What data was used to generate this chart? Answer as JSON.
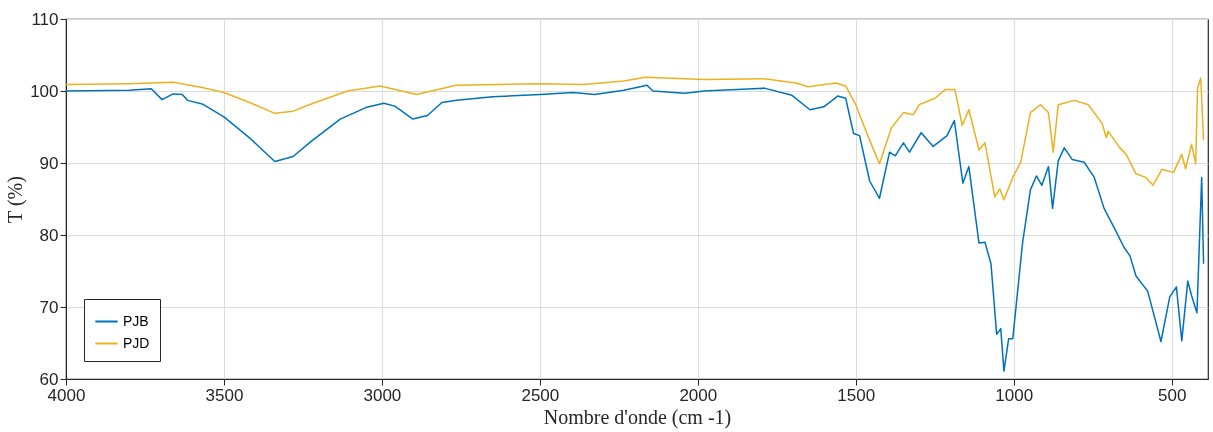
{
  "chart_data": {
    "type": "line",
    "xlabel": "Nombre d'onde (cm -1)",
    "ylabel": "T (%)",
    "xlim": [
      4000,
      385
    ],
    "xticks": [
      4000,
      3500,
      3000,
      2500,
      2000,
      1500,
      1000,
      500
    ],
    "ylim": [
      60,
      110
    ],
    "yticks": [
      60,
      70,
      80,
      90,
      100,
      110
    ],
    "grid": true,
    "legend": "bottom left",
    "line_style": "solid",
    "marker": "none",
    "series": [
      {
        "name": "PJB",
        "color": "#0072bd",
        "x": [
          4000,
          3799,
          3730,
          3696,
          3661,
          3632,
          3615,
          3569,
          3500,
          3419,
          3339,
          3281,
          3224,
          3132,
          3051,
          2994,
          2959,
          2902,
          2856,
          2810,
          2764,
          2649,
          2499,
          2395,
          2326,
          2234,
          2161,
          2142,
          2042,
          1979,
          1790,
          1702,
          1645,
          1601,
          1557,
          1532,
          1507,
          1488,
          1456,
          1425,
          1393,
          1375,
          1349,
          1330,
          1293,
          1255,
          1211,
          1188,
          1161,
          1142,
          1110,
          1091,
          1072,
          1054,
          1041,
          1031,
          1016,
          1003,
          972,
          947,
          928,
          911,
          890,
          877,
          859,
          840,
          815,
          777,
          745,
          714,
          683,
          651,
          632,
          613,
          576,
          550,
          534,
          506,
          485,
          468,
          449,
          437,
          420,
          405,
          399
        ],
        "values": [
          100.0,
          100.1,
          100.3,
          98.8,
          99.6,
          99.5,
          98.7,
          98.2,
          96.4,
          93.5,
          90.2,
          90.9,
          93.0,
          96.1,
          97.7,
          98.3,
          97.9,
          96.1,
          96.6,
          98.4,
          98.7,
          99.2,
          99.5,
          99.8,
          99.5,
          100.1,
          100.8,
          100.0,
          99.7,
          100.0,
          100.4,
          99.4,
          97.4,
          97.8,
          99.3,
          99.0,
          94.1,
          93.8,
          87.5,
          85.1,
          91.5,
          91.0,
          92.8,
          91.5,
          94.2,
          92.3,
          93.8,
          95.9,
          87.2,
          89.5,
          78.9,
          79.0,
          76.0,
          66.2,
          67.0,
          61.1,
          65.6,
          65.6,
          78.9,
          86.3,
          88.2,
          86.9,
          89.5,
          83.7,
          90.3,
          92.1,
          90.5,
          90.1,
          88.0,
          83.7,
          81.1,
          78.3,
          77.1,
          74.3,
          72.2,
          67.9,
          65.2,
          71.4,
          72.8,
          65.3,
          73.6,
          71.6,
          69.2,
          88.0,
          76.0
        ]
      },
      {
        "name": "PJD",
        "color": "#edb120",
        "x": [
          4000,
          3799,
          3661,
          3569,
          3500,
          3419,
          3339,
          3281,
          3224,
          3109,
          3005,
          2948,
          2890,
          2844,
          2764,
          2499,
          2361,
          2234,
          2167,
          1979,
          1790,
          1689,
          1651,
          1563,
          1532,
          1500,
          1462,
          1425,
          1387,
          1349,
          1318,
          1299,
          1249,
          1217,
          1186,
          1163,
          1142,
          1110,
          1091,
          1060,
          1044,
          1031,
          1003,
          978,
          947,
          915,
          890,
          875,
          859,
          808,
          764,
          720,
          707,
          701,
          664,
          644,
          613,
          582,
          559,
          531,
          494,
          468,
          456,
          437,
          424,
          418,
          408,
          399
        ],
        "values": [
          100.9,
          101.0,
          101.2,
          100.5,
          99.8,
          98.4,
          96.9,
          97.2,
          98.2,
          100.0,
          100.7,
          100.1,
          99.5,
          100.0,
          100.8,
          101.0,
          100.9,
          101.4,
          101.9,
          101.6,
          101.7,
          101.1,
          100.6,
          101.1,
          100.7,
          98.1,
          93.8,
          89.9,
          94.9,
          97.0,
          96.7,
          98.1,
          99.0,
          100.2,
          100.2,
          95.2,
          97.4,
          91.8,
          92.8,
          85.3,
          86.4,
          84.9,
          88.0,
          90.1,
          97.0,
          98.1,
          97.0,
          91.5,
          98.1,
          98.7,
          98.1,
          95.5,
          93.5,
          94.4,
          92.1,
          91.2,
          88.5,
          88.0,
          86.9,
          89.1,
          88.7,
          91.2,
          89.2,
          92.6,
          89.9,
          100.4,
          101.8,
          93.2
        ]
      }
    ]
  }
}
